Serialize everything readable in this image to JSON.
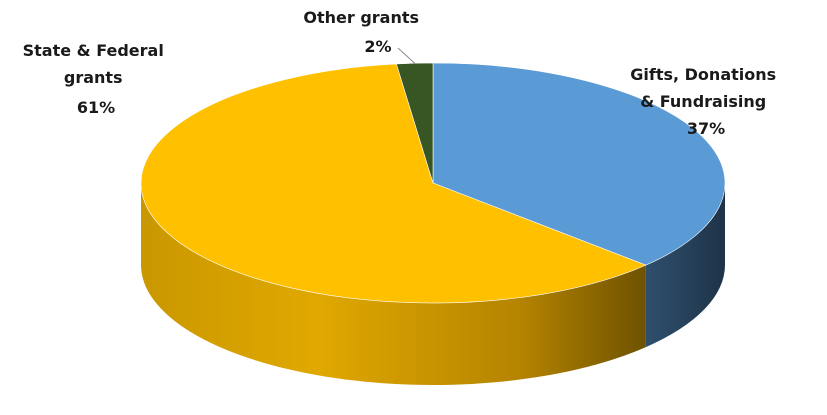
{
  "chart_data": {
    "type": "pie",
    "style": "3d",
    "slices": [
      {
        "name": "Gifts, Donations & Fundraising",
        "label_lines": [
          "Gifts, Donations",
          "& Fundraising",
          "37%"
        ],
        "value": 37,
        "color": "#5B9BD5",
        "side_color": "#2E4F6E"
      },
      {
        "name": "State & Federal grants",
        "label_lines": [
          "State & Federal",
          "grants",
          "61%"
        ],
        "value": 61,
        "color": "#FFC000",
        "side_color": "#B88A00"
      },
      {
        "name": "Other grants",
        "label_lines": [
          "Other grants",
          "2%"
        ],
        "value": 2,
        "color": "#375623",
        "side_color": "#1F3314"
      }
    ]
  }
}
